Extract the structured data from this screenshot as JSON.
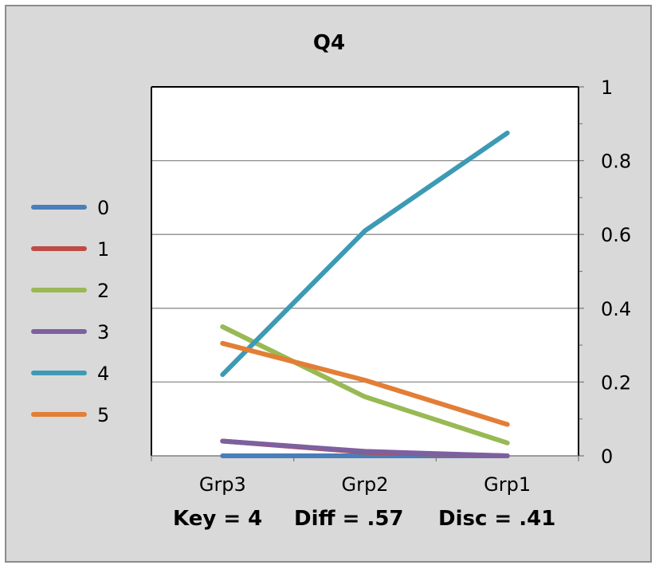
{
  "chart_data": {
    "type": "line",
    "title": "Q4",
    "categories": [
      "Grp3",
      "Grp2",
      "Grp1"
    ],
    "ylim": [
      0,
      1
    ],
    "yticks": [
      "0",
      "0.2",
      "0.4",
      "0.6",
      "0.8",
      "1"
    ],
    "ytick_values": [
      0,
      0.2,
      0.4,
      0.6,
      0.8,
      1
    ],
    "grid": true,
    "y_axis_side": "right",
    "legend_position": "left",
    "series": [
      {
        "name": "0",
        "color": "#4a7ebb",
        "values": [
          0.0,
          0.0,
          0.0
        ]
      },
      {
        "name": "1",
        "color": "#be4b48",
        "values": [
          0.04,
          0.01,
          0.0
        ]
      },
      {
        "name": "2",
        "color": "#98b954",
        "values": [
          0.35,
          0.16,
          0.035
        ]
      },
      {
        "name": "3",
        "color": "#7d60a0",
        "values": [
          0.04,
          0.012,
          0.0
        ]
      },
      {
        "name": "4",
        "color": "#3d9ab5",
        "values": [
          0.22,
          0.61,
          0.875
        ]
      },
      {
        "name": "5",
        "color": "#e37e36",
        "values": [
          0.305,
          0.205,
          0.085
        ]
      }
    ]
  },
  "footer": {
    "key": "Key = 4",
    "diff": "Diff = .57",
    "disc": "Disc = .41"
  }
}
